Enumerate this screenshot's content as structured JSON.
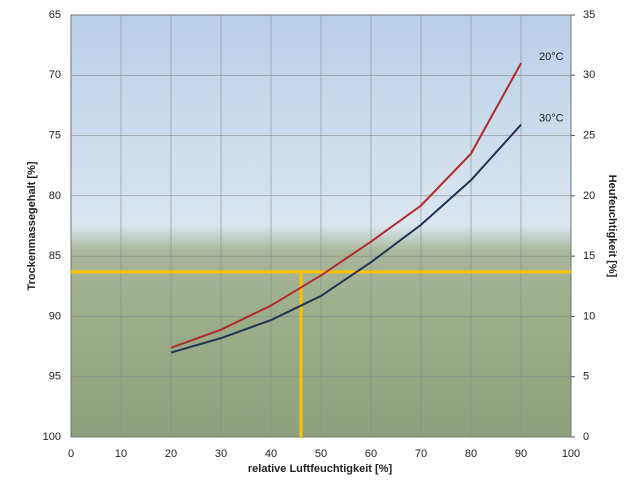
{
  "chart_data": {
    "type": "line",
    "xlabel": "relative Luftfeuchtigkeit [%]",
    "ylabel": "Trockenmassegehalt [%]",
    "y2label": "Heufeuchtigkeit [%]",
    "x": [
      20,
      30,
      40,
      50,
      60,
      70,
      80,
      90
    ],
    "series": [
      {
        "name": "20°C",
        "color": "#b22a2a",
        "axis": "y2",
        "values": [
          7.4,
          8.9,
          10.9,
          13.4,
          16.2,
          19.2,
          23.5,
          31.0
        ]
      },
      {
        "name": "30°C",
        "color": "#1f3555",
        "axis": "y2",
        "values": [
          7.0,
          8.2,
          9.7,
          11.7,
          14.5,
          17.6,
          21.3,
          25.9
        ]
      }
    ],
    "reference": {
      "x": 46,
      "y2": 13.7,
      "color": "#ffc000"
    },
    "xlim": [
      0,
      100
    ],
    "xticks": [
      0,
      10,
      20,
      30,
      40,
      50,
      60,
      70,
      80,
      90,
      100
    ],
    "ylim": [
      100,
      65
    ],
    "yticks": [
      65,
      70,
      75,
      80,
      85,
      90,
      95,
      100
    ],
    "y2lim": [
      0,
      35
    ],
    "y2ticks": [
      0,
      5,
      10,
      15,
      20,
      25,
      30,
      35
    ],
    "grid": true
  }
}
